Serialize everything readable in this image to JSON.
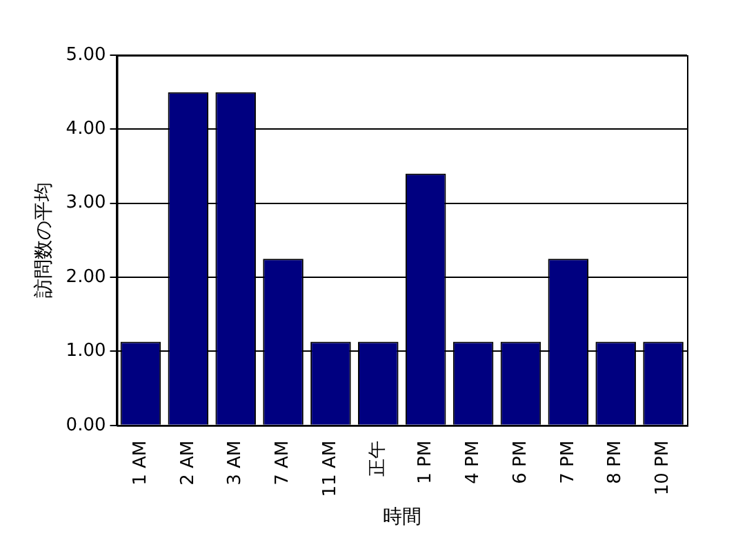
{
  "chart_data": {
    "type": "bar",
    "xlabel": "時間",
    "ylabel": "訪問数の平均",
    "categories": [
      "1 AM",
      "2 AM",
      "3 AM",
      "7 AM",
      "11 AM",
      "正午",
      "1 PM",
      "4 PM",
      "6 PM",
      "7 PM",
      "8 PM",
      "10 PM"
    ],
    "values": [
      1.13,
      4.5,
      4.5,
      2.25,
      1.13,
      1.13,
      3.4,
      1.13,
      1.13,
      2.25,
      1.13,
      1.13
    ],
    "color": "#000080",
    "ylim": [
      0,
      5
    ],
    "yticks": [
      {
        "value": 0,
        "label": "0.00"
      },
      {
        "value": 1,
        "label": "1.00"
      },
      {
        "value": 2,
        "label": "2.00"
      },
      {
        "value": 3,
        "label": "3.00"
      },
      {
        "value": 4,
        "label": "4.00"
      },
      {
        "value": 5,
        "label": "5.00"
      }
    ],
    "grid": "y",
    "legend": false
  }
}
